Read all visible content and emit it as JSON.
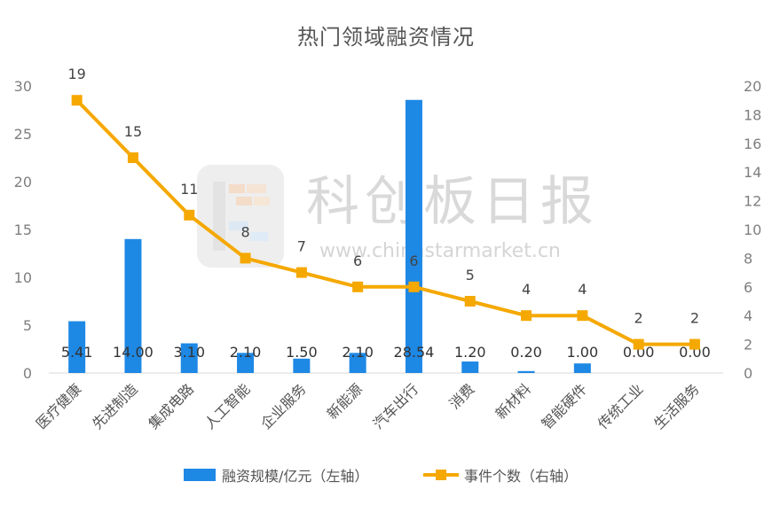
{
  "chart_data": {
    "type": "bar+line",
    "title": "热门领域融资情况",
    "categories": [
      "医疗健康",
      "先进制造",
      "集成电路",
      "人工智能",
      "企业服务",
      "新能源",
      "汽车出行",
      "消费",
      "新材料",
      "智能硬件",
      "传统工业",
      "生活服务"
    ],
    "series": [
      {
        "name": "融资规模/亿元（左轴）",
        "type": "bar",
        "axis": "left",
        "color": "#1e88e5",
        "values": [
          5.41,
          14.0,
          3.1,
          2.1,
          1.5,
          2.1,
          28.54,
          1.2,
          0.2,
          1.0,
          0.0,
          0.0
        ],
        "labels": [
          "5.41",
          "14.00",
          "3.10",
          "2.10",
          "1.50",
          "2.10",
          "28.54",
          "1.20",
          "0.20",
          "1.00",
          "0.00",
          "0.00"
        ]
      },
      {
        "name": "事件个数（右轴）",
        "type": "line",
        "axis": "right",
        "color": "#f5a800",
        "values": [
          19,
          15,
          11,
          8,
          7,
          6,
          6,
          5,
          4,
          4,
          2,
          2
        ],
        "labels": [
          "19",
          "15",
          "11",
          "8",
          "7",
          "6",
          "6",
          "5",
          "4",
          "4",
          "2",
          "2"
        ]
      }
    ],
    "y_left": {
      "min": 0,
      "max": 30,
      "ticks": [
        "0",
        "5",
        "10",
        "15",
        "20",
        "25",
        "30"
      ]
    },
    "y_right": {
      "min": 0,
      "max": 20,
      "ticks": [
        "0",
        "2",
        "4",
        "6",
        "8",
        "10",
        "12",
        "14",
        "16",
        "18",
        "20"
      ]
    },
    "legend_position": "bottom",
    "grid": false
  },
  "watermark": {
    "name": "科创板日报",
    "url": "www.chinastarmarket.cn",
    "logo_icon": "star-market-logo-icon"
  }
}
